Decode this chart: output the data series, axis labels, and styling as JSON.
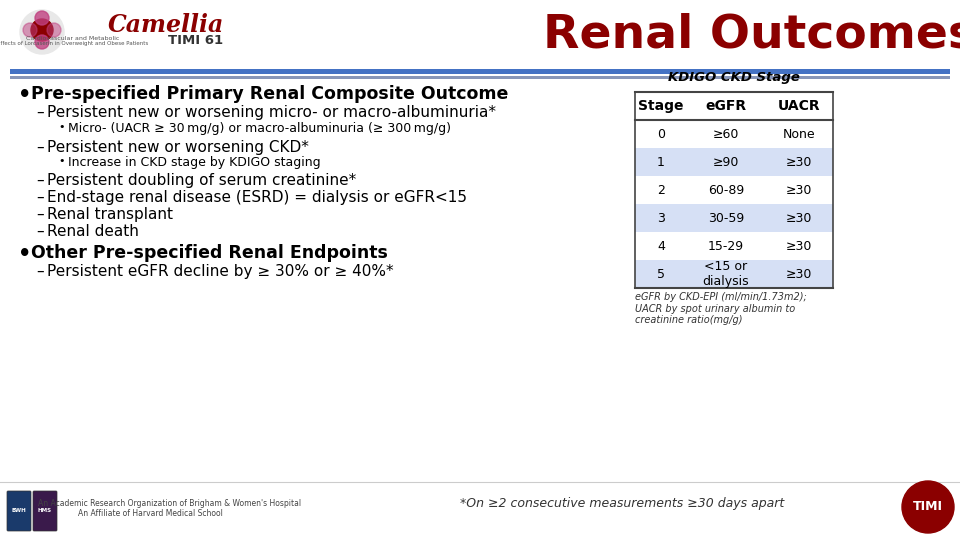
{
  "title": "Renal Outcomes",
  "title_color": "#8B0000",
  "title_fontsize": 34,
  "bg_color": "#FFFFFF",
  "bullet1": "Pre-specified Primary Renal Composite Outcome",
  "sub1a": "Persistent new or worsening micro- or macro-albuminuria*",
  "sub1a1": "Micro- (UACR ≥ 30 mg/g) or macro-albuminuria (≥ 300 mg/g)",
  "sub1b": "Persistent new or worsening CKD*",
  "sub1b1": "Increase in CKD stage by KDIGO staging",
  "sub1c": "Persistent doubling of serum creatinine*",
  "sub1d": "End-stage renal disease (ESRD) = dialysis or eGFR<15",
  "sub1e": "Renal transplant",
  "sub1f": "Renal death",
  "bullet2": "Other Pre-specified Renal Endpoints",
  "sub2a": "Persistent eGFR decline by ≥ 30% or ≥ 40%*",
  "footnote_main": "*On ≥2 consecutive measurements ≥30 days apart",
  "footnote_table": "eGFR by CKD-EPI (ml/min/1.73m2);\nUACR by spot urinary albumin to\ncreatinine ratio(mg/g)",
  "table_title": "KDIGO CKD Stage",
  "table_headers": [
    "Stage",
    "eGFR",
    "UACR"
  ],
  "table_rows": [
    [
      "0",
      "≥60",
      "None"
    ],
    [
      "1",
      "≥90",
      "≥30"
    ],
    [
      "2",
      "60-89",
      "≥30"
    ],
    [
      "3",
      "30-59",
      "≥30"
    ],
    [
      "4",
      "15-29",
      "≥30"
    ],
    [
      "5",
      "<15 or\ndialysis",
      "≥30"
    ]
  ],
  "table_shaded_rows": [
    1,
    3,
    5
  ],
  "table_shade_color": "#D6E0F5",
  "table_border_color": "#444444",
  "camellia_text_color": "#8B0000",
  "timi_text": "TIMI 61",
  "separator_color1": "#4472C4",
  "separator_color2": "#8896B8"
}
